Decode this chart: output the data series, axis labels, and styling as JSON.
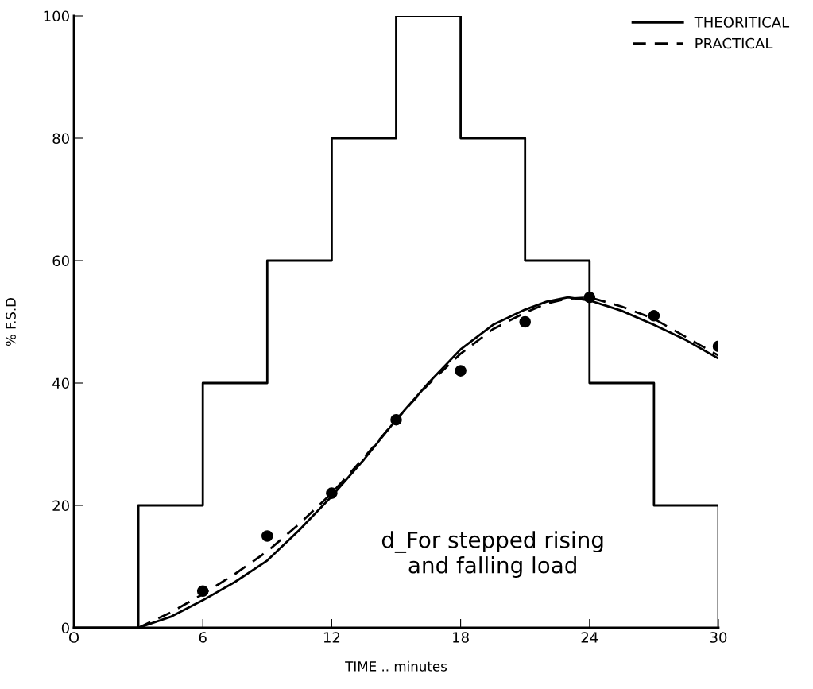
{
  "chart_data": {
    "type": "line",
    "xlabel": "TIME .. minutes",
    "ylabel": "% F.S.D",
    "xlim": [
      0,
      30
    ],
    "ylim": [
      0,
      100
    ],
    "xticks": [
      {
        "value": 0,
        "label": "O"
      },
      6,
      12,
      18,
      24,
      30
    ],
    "yticks": [
      0,
      20,
      40,
      60,
      80,
      100
    ],
    "grid": false,
    "legend": "top right",
    "annotations": [
      "d_For stepped rising\nand falling load"
    ],
    "series": [
      {
        "type": "step",
        "color": "#000000",
        "line_style": "solid",
        "marker": "none",
        "x": [
          0,
          3,
          6,
          9,
          12,
          15,
          18,
          21,
          24,
          27,
          30
        ],
        "values": [
          0,
          20,
          40,
          60,
          80,
          100,
          80,
          60,
          40,
          20,
          0
        ]
      },
      {
        "name": "THEORITICAL",
        "color": "#000000",
        "line_style": "solid",
        "marker": "none",
        "x": [
          3,
          4.5,
          6,
          7.5,
          9,
          10.5,
          12,
          13.5,
          15,
          16.5,
          18,
          19.5,
          21,
          22,
          23,
          24,
          25.5,
          27,
          28.5,
          30
        ],
        "values": [
          0,
          1.8,
          4.5,
          7.5,
          11,
          16,
          21.5,
          27.5,
          34,
          40,
          45.5,
          49.5,
          52,
          53.3,
          54,
          53.5,
          51.8,
          49.5,
          47,
          44
        ]
      },
      {
        "name": "PRACTICAL",
        "color": "#000000",
        "line_style": "dashed",
        "marker": "none",
        "x": [
          3,
          4.5,
          6,
          7.5,
          9,
          10.5,
          12,
          13.5,
          15,
          16.5,
          18,
          19.5,
          21,
          22,
          23,
          24,
          25.5,
          27,
          28.5,
          30
        ],
        "values": [
          0,
          2.5,
          5.5,
          8.8,
          12.5,
          17,
          22,
          27.8,
          34,
          39.8,
          44.8,
          48.8,
          51.5,
          53,
          53.8,
          54,
          52.5,
          50.5,
          47.5,
          44.5
        ]
      },
      {
        "type": "scatter",
        "color": "#000000",
        "marker": "circle",
        "x": [
          6,
          9,
          12,
          15,
          18,
          21,
          24,
          27,
          30
        ],
        "values": [
          6,
          15,
          22,
          34,
          42,
          50,
          54,
          51,
          46
        ]
      }
    ]
  }
}
